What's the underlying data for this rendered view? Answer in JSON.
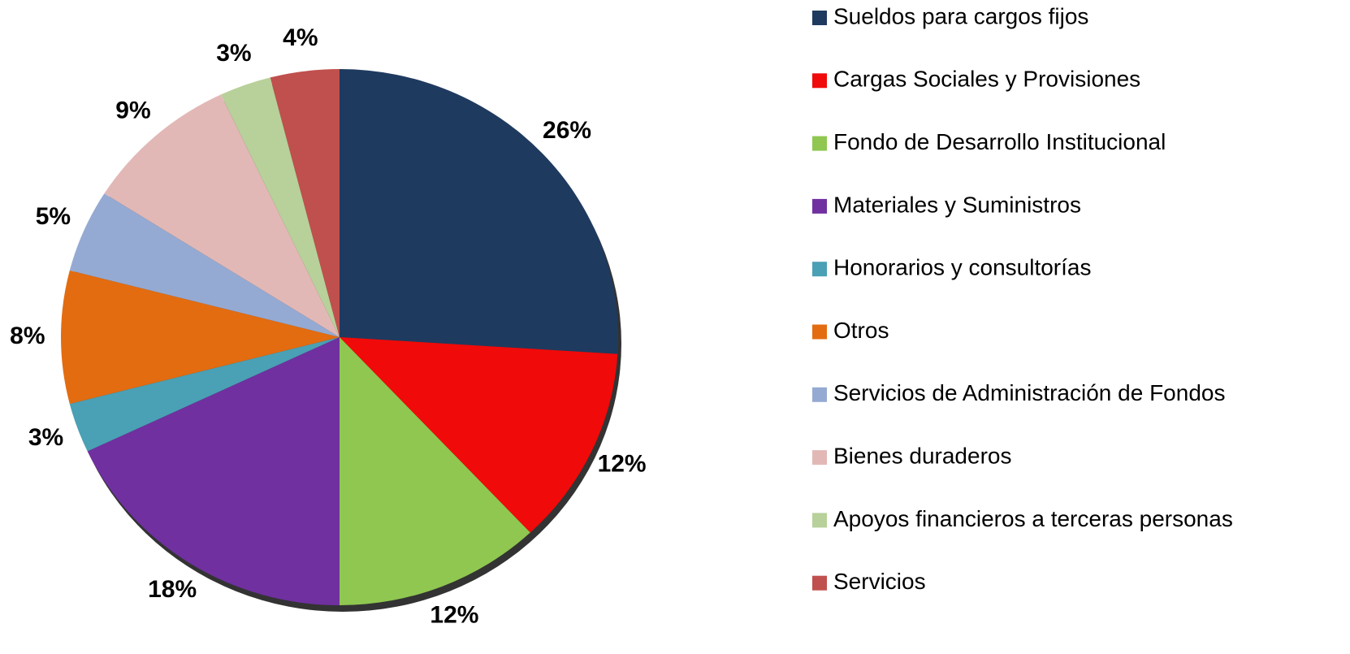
{
  "chart_data": {
    "type": "pie",
    "categories": [
      "Sueldos para cargos fijos",
      "Cargas Sociales y Provisiones",
      "Fondo de Desarrollo Institucional",
      "Materiales y Suministros",
      "Honorarios y consultorías",
      "Otros",
      "Servicios de Administración de Fondos",
      "Bienes duraderos",
      "Apoyos financieros a terceras personas",
      "Servicios"
    ],
    "values": [
      26,
      12,
      12,
      18,
      3,
      8,
      5,
      9,
      3,
      4
    ],
    "value_labels": [
      "26%",
      "12%",
      "12%",
      "18%",
      "3%",
      "8%",
      "5%",
      "9%",
      "3%",
      "4%"
    ],
    "colors": [
      "#1f3a5f",
      "#f00a0a",
      "#8fc750",
      "#7030a0",
      "#4aa0b4",
      "#e36c10",
      "#95aad2",
      "#e2b8b6",
      "#b8d09a",
      "#c0504d"
    ],
    "legend": "right"
  }
}
